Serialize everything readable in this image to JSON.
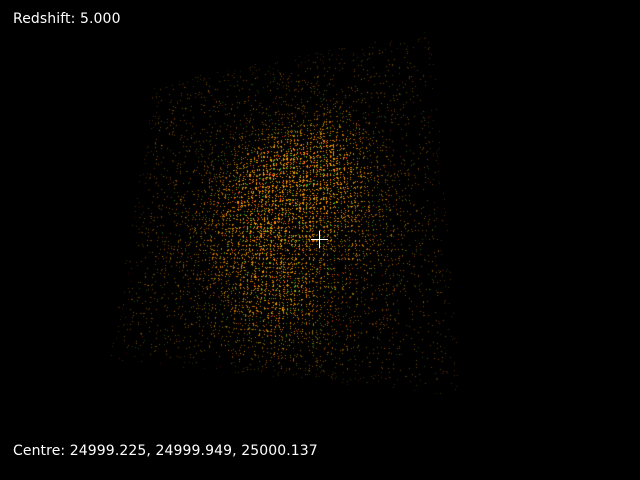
{
  "hud": {
    "redshift_label": "Redshift: 5.000",
    "centre_label": "Centre: 24999.225, 24999.949, 25000.137"
  },
  "scene": {
    "background_color": "#000000",
    "text_color": "#ffffff",
    "crosshair_color": "#ffffff",
    "particle_colors": [
      "#ff8c00",
      "#ffb000",
      "#d9a000",
      "#2fa82f",
      "#ff3a1a"
    ]
  }
}
